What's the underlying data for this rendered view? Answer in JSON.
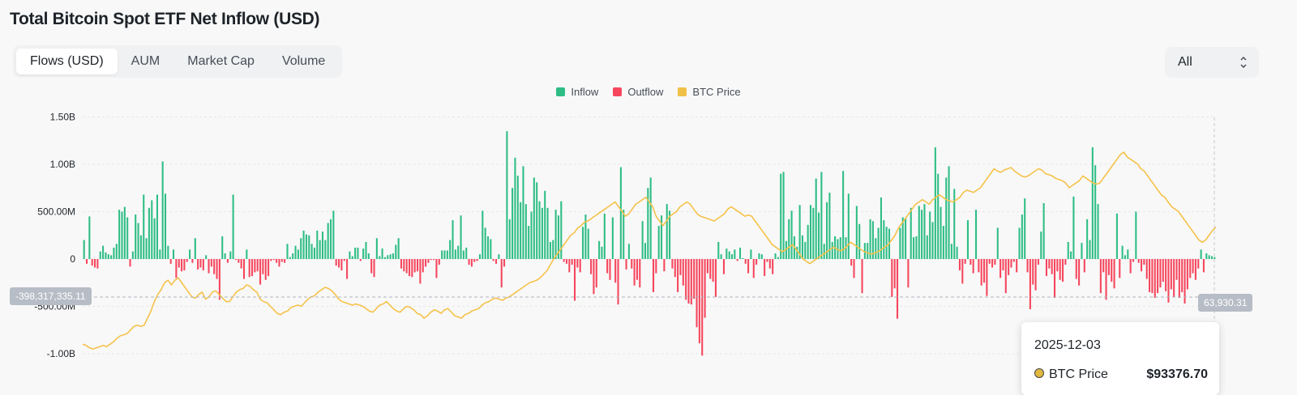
{
  "title": "Total Bitcoin Spot ETF Net Inflow (USD)",
  "tabs": [
    {
      "label": "Flows (USD)",
      "active": true
    },
    {
      "label": "AUM",
      "active": false
    },
    {
      "label": "Market Cap",
      "active": false
    },
    {
      "label": "Volume",
      "active": false
    }
  ],
  "range_select": {
    "value": "All",
    "icon": "chevron-up-down-icon"
  },
  "crosshair": {
    "y_readout": "-398,317,335.11",
    "right_readout": "63,930.31"
  },
  "tooltip": {
    "date": "2025-12-03",
    "label": "BTC Price",
    "value": "$93376.70"
  },
  "colors": {
    "inflow": "#2ebd85",
    "outflow": "#f6465d",
    "price": "#f0b90b",
    "text": "#1e2329"
  },
  "chart_data": {
    "type": "bar",
    "ylim": [
      -1000000000,
      1500000000
    ],
    "y_ticks": [
      {
        "value": 1500000000,
        "label": "1.50B"
      },
      {
        "value": 1000000000,
        "label": "1.00B"
      },
      {
        "value": 500000000,
        "label": "500.00M"
      },
      {
        "value": 0,
        "label": "0"
      },
      {
        "value": -500000000,
        "label": "-500.00M"
      },
      {
        "value": -1000000000,
        "label": "-1.00B"
      }
    ],
    "grid": true,
    "legend": {
      "position": "top-center",
      "entries": [
        "Inflow",
        "Outflow",
        "BTC Price"
      ]
    },
    "series": [
      {
        "name": "Inflow / Outflow",
        "type": "bar",
        "unit": "USD",
        "values_millions": [
          200,
          -50,
          450,
          -70,
          -90,
          -100,
          80,
          140,
          70,
          50,
          40,
          120,
          160,
          520,
          500,
          550,
          440,
          -80,
          80,
          470,
          380,
          250,
          680,
          220,
          540,
          620,
          430,
          680,
          100,
          1030,
          690,
          140,
          -50,
          100,
          -200,
          -90,
          -130,
          -120,
          -30,
          100,
          -40,
          220,
          -110,
          -90,
          -120,
          40,
          -150,
          -80,
          -160,
          -210,
          -430,
          240,
          60,
          -40,
          80,
          680,
          -10,
          -40,
          -100,
          -210,
          100,
          -190,
          -180,
          -140,
          -130,
          -270,
          -160,
          -220,
          -180,
          -20,
          -10,
          -40,
          -80,
          -30,
          -40,
          160,
          20,
          60,
          140,
          100,
          220,
          300,
          260,
          250,
          160,
          120,
          300,
          200,
          290,
          200,
          380,
          420,
          510,
          -70,
          -90,
          -120,
          -20,
          -210,
          80,
          30,
          120,
          120,
          -20,
          110,
          180,
          60,
          -150,
          -190,
          220,
          30,
          110,
          20,
          40,
          50,
          60,
          150,
          220,
          -100,
          -130,
          -150,
          -180,
          -190,
          -140,
          -130,
          -260,
          -140,
          -80,
          -40,
          -10,
          -10,
          -200,
          -60,
          90,
          90,
          90,
          200,
          410,
          100,
          140,
          460,
          90,
          120,
          -60,
          -80,
          -30,
          -20,
          50,
          510,
          330,
          240,
          210,
          -20,
          -50,
          50,
          -300,
          -80,
          1350,
          420,
          750,
          1070,
          880,
          600,
          980,
          580,
          350,
          500,
          860,
          810,
          610,
          540,
          720,
          540,
          180,
          200,
          520,
          460,
          610,
          -30,
          -50,
          -140,
          -60,
          -440,
          -90,
          -140,
          340,
          470,
          320,
          -160,
          -370,
          -300,
          190,
          130,
          480,
          -150,
          -220,
          440,
          -250,
          -480,
          970,
          520,
          -110,
          160,
          -100,
          -280,
          -220,
          -300,
          400,
          170,
          750,
          860,
          -350,
          -150,
          350,
          460,
          -130,
          580,
          510,
          -100,
          -190,
          -350,
          -170,
          -280,
          -430,
          -470,
          -480,
          -420,
          -720,
          -890,
          -1020,
          -620,
          -150,
          -210,
          -240,
          -400,
          180,
          50,
          -160,
          110,
          80,
          50,
          100,
          -20,
          120,
          10,
          -50,
          -150,
          100,
          -200,
          -60,
          60,
          50,
          -180,
          -30,
          -100,
          -160,
          60,
          20,
          900,
          920,
          190,
          420,
          510,
          240,
          130,
          570,
          250,
          180,
          360,
          570,
          540,
          850,
          490,
          920,
          160,
          600,
          700,
          180,
          240,
          210,
          230,
          930,
          230,
          690,
          -70,
          -200,
          560,
          370,
          -360,
          170,
          170,
          420,
          400,
          220,
          330,
          650,
          410,
          340,
          320,
          -400,
          -310,
          -630,
          330,
          440,
          430,
          -300,
          540,
          230,
          240,
          560,
          520,
          580,
          250,
          500,
          390,
          1180,
          900,
          550,
          350,
          860,
          980,
          160,
          740,
          130,
          -120,
          -260,
          -50,
          410,
          -60,
          -150,
          520,
          -140,
          -280,
          -250,
          -390,
          -50,
          -90,
          -60,
          330,
          -200,
          -120,
          -360,
          -170,
          -90,
          -30,
          -140,
          330,
          470,
          640,
          -140,
          -530,
          -270,
          -330,
          -60,
          290,
          590,
          -180,
          -100,
          -160,
          -410,
          -130,
          -220,
          -240,
          -60,
          180,
          80,
          660,
          -210,
          -280,
          170,
          -140,
          420,
          200,
          1180,
          990,
          580,
          -360,
          -140,
          -430,
          -170,
          -240,
          -310,
          480,
          -200,
          140,
          40,
          100,
          -150,
          -30,
          500,
          -40,
          -130,
          -60,
          -210,
          -350,
          -360,
          -410,
          -360,
          -300,
          -240,
          -340,
          -460,
          -320,
          -400,
          -220,
          -410,
          -350,
          -470,
          -320,
          -200,
          -150,
          -220,
          -100,
          100,
          -140,
          60,
          40,
          30,
          20
        ]
      },
      {
        "name": "BTC Price",
        "type": "line",
        "unit": "USD",
        "values": [
          44000,
          43500,
          42500,
          42000,
          42500,
          43000,
          43500,
          43000,
          44000,
          45000,
          46500,
          47500,
          48000,
          48500,
          50000,
          51500,
          52000,
          51500,
          52000,
          55000,
          58000,
          62000,
          65000,
          67000,
          70000,
          71000,
          69000,
          71000,
          72000,
          70000,
          68000,
          66000,
          64000,
          63500,
          65000,
          66000,
          63000,
          64000,
          66000,
          66500,
          65000,
          63500,
          62000,
          62000,
          64000,
          66000,
          67000,
          67500,
          69000,
          68500,
          67000,
          66000,
          63000,
          62000,
          61500,
          60000,
          58500,
          57000,
          56500,
          57500,
          58000,
          59500,
          60000,
          60500,
          60000,
          61500,
          63000,
          64000,
          64500,
          66000,
          67000,
          68000,
          67500,
          66500,
          65000,
          63000,
          62000,
          61500,
          61000,
          60500,
          61000,
          60500,
          60000,
          59000,
          58000,
          57500,
          59000,
          60500,
          61000,
          62000,
          60500,
          59000,
          58000,
          57500,
          59000,
          60000,
          59500,
          58500,
          57000,
          56500,
          55000,
          56000,
          57500,
          58500,
          58000,
          57000,
          58500,
          59000,
          57500,
          56000,
          55500,
          55000,
          56500,
          57000,
          58000,
          58500,
          59000,
          60500,
          61500,
          62000,
          63000,
          63500,
          63000,
          62500,
          63500,
          64000,
          65000,
          66000,
          67000,
          68000,
          69000,
          70000,
          70500,
          71000,
          72000,
          73500,
          75000,
          77500,
          80000,
          82000,
          84000,
          86000,
          88000,
          90000,
          91000,
          93000,
          94000,
          95500,
          96000,
          97000,
          98000,
          99000,
          100000,
          101000,
          102000,
          103000,
          104000,
          102000,
          100000,
          98000,
          99000,
          101000,
          103000,
          104000,
          105000,
          106000,
          104000,
          102000,
          98000,
          96000,
          94000,
          96000,
          98000,
          99000,
          100000,
          102000,
          103000,
          104000,
          103000,
          101000,
          99000,
          98000,
          97500,
          97000,
          96500,
          96000,
          97000,
          98000,
          99000,
          101000,
          102000,
          101000,
          100000,
          99000,
          98000,
          98500,
          98000,
          96000,
          94000,
          92000,
          90000,
          88000,
          86000,
          85000,
          84000,
          83000,
          84000,
          85000,
          86000,
          84000,
          82000,
          80000,
          79000,
          78000,
          79000,
          80000,
          81000,
          82000,
          83000,
          84000,
          85000,
          84000,
          83500,
          84000,
          85500,
          87000,
          86000,
          85000,
          84000,
          83000,
          82500,
          82000,
          82500,
          83000,
          84000,
          85000,
          86000,
          88000,
          90000,
          93000,
          95000,
          97000,
          99000,
          101000,
          103000,
          104000,
          105000,
          104000,
          103000,
          105000,
          106000,
          107000,
          106000,
          105000,
          104500,
          104000,
          105000,
          106000,
          108000,
          109000,
          108500,
          108000,
          109000,
          110000,
          112000,
          114000,
          116000,
          118000,
          117000,
          116500,
          117500,
          118000,
          118500,
          117000,
          116000,
          115000,
          114500,
          115000,
          116000,
          117000,
          118000,
          117500,
          116000,
          115500,
          115000,
          114000,
          113500,
          113000,
          112000,
          110000,
          111000,
          112000,
          113000,
          115000,
          114000,
          113000,
          112000,
          111500,
          112000,
          114000,
          116000,
          118000,
          120000,
          122000,
          124000,
          125000,
          123000,
          122000,
          121000,
          120000,
          118000,
          117000,
          115000,
          113000,
          111000,
          109000,
          107000,
          106000,
          104000,
          102000,
          101000,
          100000,
          98000,
          96000,
          94000,
          92000,
          90000,
          88000,
          87000,
          88000,
          90000,
          92000,
          93376.7
        ]
      }
    ]
  }
}
